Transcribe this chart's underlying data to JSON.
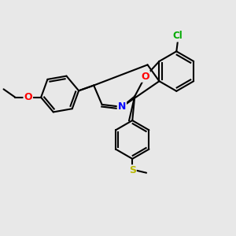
{
  "bg_color": "#e8e8e8",
  "bond_color": "#000000",
  "bond_width": 1.5,
  "atom_colors": {
    "N": "#0000ff",
    "O": "#ff0000",
    "S": "#b8b800",
    "Cl": "#00aa00",
    "C": "#000000"
  },
  "font_size": 8,
  "figsize": [
    3.0,
    3.0
  ],
  "dpi": 100
}
